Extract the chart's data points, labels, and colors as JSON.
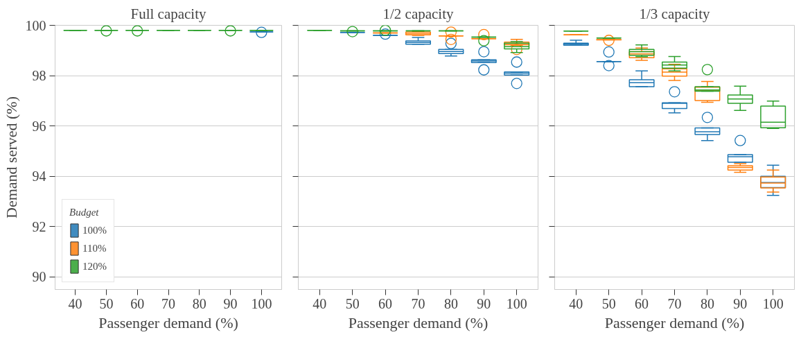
{
  "chart_data": [
    {
      "type": "box",
      "title": "Full capacity",
      "xlabel": "Passenger demand (%)",
      "ylabel": "Demand served (%)",
      "categories": [
        "40",
        "50",
        "60",
        "70",
        "80",
        "90",
        "100"
      ],
      "ylim": [
        89.5,
        100
      ],
      "yticks": [
        90,
        92,
        94,
        96,
        98,
        100
      ],
      "grid": "y",
      "legend": "bottom left",
      "legend_title": "Budget",
      "series": [
        {
          "name": "100%",
          "color": "#1f77b4",
          "boxes": [
            null,
            null,
            null,
            null,
            null,
            null,
            {
              "low": 99.74,
              "q1": 99.74,
              "median": 99.74,
              "q3": 99.74,
              "high": 99.74,
              "outliers": [
                99.72
              ]
            }
          ]
        },
        {
          "name": "110%",
          "color": "#ff7f0e",
          "boxes": [
            null,
            null,
            null,
            null,
            null,
            null,
            null
          ]
        },
        {
          "name": "120%",
          "color": "#2ca02c",
          "boxes": [
            {
              "low": 99.8,
              "q1": 99.8,
              "median": 99.8,
              "q3": 99.8,
              "high": 99.8
            },
            {
              "low": 99.8,
              "q1": 99.8,
              "median": 99.8,
              "q3": 99.8,
              "high": 99.8,
              "outliers": [
                99.78
              ]
            },
            {
              "low": 99.8,
              "q1": 99.8,
              "median": 99.8,
              "q3": 99.8,
              "high": 99.8,
              "outliers": [
                99.78
              ]
            },
            {
              "low": 99.8,
              "q1": 99.8,
              "median": 99.8,
              "q3": 99.8,
              "high": 99.8
            },
            {
              "low": 99.8,
              "q1": 99.8,
              "median": 99.8,
              "q3": 99.8,
              "high": 99.8
            },
            {
              "low": 99.8,
              "q1": 99.8,
              "median": 99.8,
              "q3": 99.8,
              "high": 99.8,
              "outliers": [
                99.78
              ]
            },
            {
              "low": 99.8,
              "q1": 99.8,
              "median": 99.8,
              "q3": 99.8,
              "high": 99.8
            }
          ]
        }
      ]
    },
    {
      "type": "box",
      "title": "1/2 capacity",
      "xlabel": "Passenger demand (%)",
      "categories": [
        "40",
        "50",
        "60",
        "70",
        "80",
        "90",
        "100"
      ],
      "ylim": [
        89.5,
        100
      ],
      "yticks": [
        90,
        92,
        94,
        96,
        98,
        100
      ],
      "grid": "y",
      "tick_labels": "x",
      "series": [
        {
          "color": "#1f77b4",
          "boxes": [
            null,
            {
              "low": 99.72,
              "q1": 99.72,
              "median": 99.72,
              "q3": 99.72,
              "high": 99.72
            },
            {
              "low": 99.6,
              "q1": 99.6,
              "median": 99.6,
              "q3": 99.6,
              "high": 99.6,
              "outliers": [
                99.65
              ]
            },
            {
              "low": 99.25,
              "q1": 99.25,
              "median": 99.32,
              "q3": 99.38,
              "high": 99.52
            },
            {
              "low": 98.78,
              "q1": 98.88,
              "median": 98.96,
              "q3": 99.04,
              "high": 99.04,
              "outliers": [
                99.28
              ]
            },
            {
              "low": 98.52,
              "q1": 98.52,
              "median": 98.58,
              "q3": 98.63,
              "high": 98.63,
              "outliers": [
                98.95,
                98.23
              ]
            },
            {
              "low": 98.02,
              "q1": 98.02,
              "median": 98.1,
              "q3": 98.15,
              "high": 98.15,
              "outliers": [
                98.54,
                97.69
              ]
            }
          ]
        },
        {
          "color": "#ff7f0e",
          "boxes": [
            null,
            null,
            {
              "low": 99.7,
              "q1": 99.7,
              "median": 99.7,
              "q3": 99.7,
              "high": 99.7
            },
            {
              "low": 99.6,
              "q1": 99.62,
              "median": 99.67,
              "q3": 99.73,
              "high": 99.76
            },
            {
              "low": 99.58,
              "q1": 99.58,
              "median": 99.58,
              "q3": 99.58,
              "high": 99.58,
              "outliers": [
                99.73,
                99.44
              ]
            },
            {
              "low": 99.47,
              "q1": 99.47,
              "median": 99.47,
              "q3": 99.47,
              "high": 99.47,
              "outliers": [
                99.63
              ]
            },
            {
              "low": 99.2,
              "q1": 99.23,
              "median": 99.28,
              "q3": 99.33,
              "high": 99.44,
              "outliers": [
                99.04
              ]
            }
          ]
        },
        {
          "color": "#2ca02c",
          "boxes": [
            {
              "low": 99.8,
              "q1": 99.8,
              "median": 99.8,
              "q3": 99.8,
              "high": 99.8
            },
            {
              "low": 99.78,
              "q1": 99.78,
              "median": 99.78,
              "q3": 99.78,
              "high": 99.78,
              "outliers": [
                99.75
              ]
            },
            {
              "low": 99.78,
              "q1": 99.78,
              "median": 99.78,
              "q3": 99.78,
              "high": 99.78,
              "outliers": [
                99.8
              ]
            },
            {
              "low": 99.78,
              "q1": 99.78,
              "median": 99.78,
              "q3": 99.78,
              "high": 99.78
            },
            {
              "low": 99.78,
              "q1": 99.78,
              "median": 99.78,
              "q3": 99.78,
              "high": 99.78
            },
            {
              "low": 99.53,
              "q1": 99.53,
              "median": 99.53,
              "q3": 99.53,
              "high": 99.53,
              "outliers": [
                99.39
              ]
            },
            {
              "low": 98.92,
              "q1": 99.06,
              "median": 99.15,
              "q3": 99.29,
              "high": 99.35
            }
          ]
        }
      ]
    },
    {
      "type": "box",
      "title": "1/3 capacity",
      "xlabel": "Passenger demand (%)",
      "categories": [
        "40",
        "50",
        "60",
        "70",
        "80",
        "90",
        "100"
      ],
      "ylim": [
        89.5,
        100
      ],
      "yticks": [
        90,
        92,
        94,
        96,
        98,
        100
      ],
      "grid": "y",
      "tick_labels": "x",
      "series": [
        {
          "color": "#1f77b4",
          "boxes": [
            {
              "low": 99.21,
              "q1": 99.21,
              "median": 99.25,
              "q3": 99.29,
              "high": 99.41
            },
            {
              "low": 98.56,
              "q1": 98.56,
              "median": 98.56,
              "q3": 98.56,
              "high": 98.56,
              "outliers": [
                98.94,
                98.4
              ]
            },
            {
              "low": 97.56,
              "q1": 97.56,
              "median": 97.72,
              "q3": 97.84,
              "high": 98.19
            },
            {
              "low": 96.52,
              "q1": 96.69,
              "median": 96.9,
              "q3": 96.92,
              "high": 96.92,
              "outliers": [
                97.36
              ]
            },
            {
              "low": 95.42,
              "q1": 95.66,
              "median": 95.77,
              "q3": 95.92,
              "high": 95.92,
              "outliers": [
                96.34
              ]
            },
            {
              "low": 94.56,
              "q1": 94.56,
              "median": 94.78,
              "q3": 94.86,
              "high": 94.86,
              "outliers": [
                95.42
              ]
            },
            {
              "low": 93.24,
              "q1": 93.55,
              "median": 93.75,
              "q3": 94.0,
              "high": 94.44
            }
          ]
        },
        {
          "color": "#ff7f0e",
          "boxes": [
            {
              "low": 99.62,
              "q1": 99.62,
              "median": 99.62,
              "q3": 99.62,
              "high": 99.62
            },
            {
              "low": 99.42,
              "q1": 99.42,
              "median": 99.43,
              "q3": 99.43,
              "high": 99.43,
              "outliers": [
                99.4
              ]
            },
            {
              "low": 98.61,
              "q1": 98.71,
              "median": 98.86,
              "q3": 98.95,
              "high": 99.1
            },
            {
              "low": 97.81,
              "q1": 97.98,
              "median": 98.14,
              "q3": 98.27,
              "high": 98.45
            },
            {
              "low": 96.94,
              "q1": 97.01,
              "median": 97.42,
              "q3": 97.54,
              "high": 97.77
            },
            {
              "low": 94.16,
              "q1": 94.25,
              "median": 94.35,
              "q3": 94.42,
              "high": 94.5
            },
            {
              "low": 93.37,
              "q1": 93.54,
              "median": 93.73,
              "q3": 93.97,
              "high": 94.25
            }
          ]
        },
        {
          "color": "#2ca02c",
          "boxes": [
            {
              "low": 99.77,
              "q1": 99.77,
              "median": 99.77,
              "q3": 99.77,
              "high": 99.77
            },
            {
              "low": 99.5,
              "q1": 99.5,
              "median": 99.5,
              "q3": 99.5,
              "high": 99.5
            },
            {
              "low": 98.75,
              "q1": 98.81,
              "median": 98.95,
              "q3": 99.04,
              "high": 99.22
            },
            {
              "low": 98.19,
              "q1": 98.3,
              "median": 98.42,
              "q3": 98.54,
              "high": 98.76
            },
            {
              "low": 97.38,
              "q1": 97.38,
              "median": 97.43,
              "q3": 97.56,
              "high": 97.56,
              "outliers": [
                98.24
              ]
            },
            {
              "low": 96.62,
              "q1": 96.9,
              "median": 97.07,
              "q3": 97.23,
              "high": 97.58
            },
            {
              "low": 95.9,
              "q1": 95.93,
              "median": 96.15,
              "q3": 96.79,
              "high": 96.99
            }
          ]
        }
      ]
    }
  ]
}
